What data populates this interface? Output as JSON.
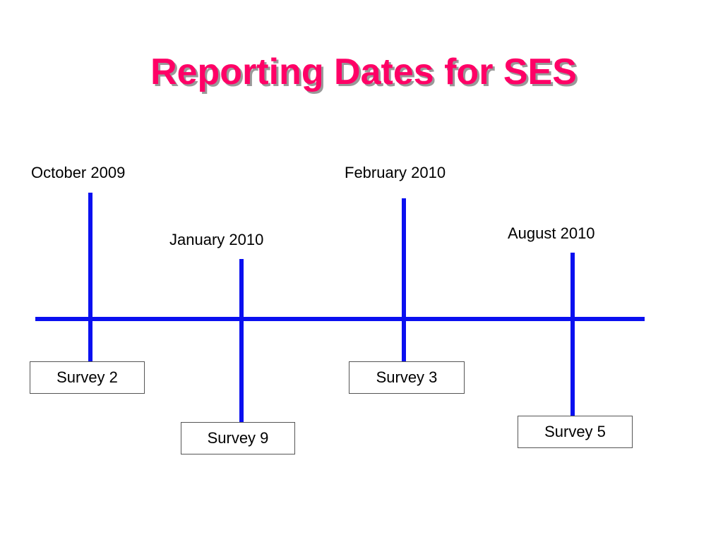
{
  "title": "Reporting Dates for SES",
  "events": [
    {
      "date": "October 2009",
      "survey": "Survey 2"
    },
    {
      "date": "January 2010",
      "survey": "Survey 9"
    },
    {
      "date": "February 2010",
      "survey": "Survey 3"
    },
    {
      "date": "August 2010",
      "survey": "Survey 5"
    }
  ]
}
